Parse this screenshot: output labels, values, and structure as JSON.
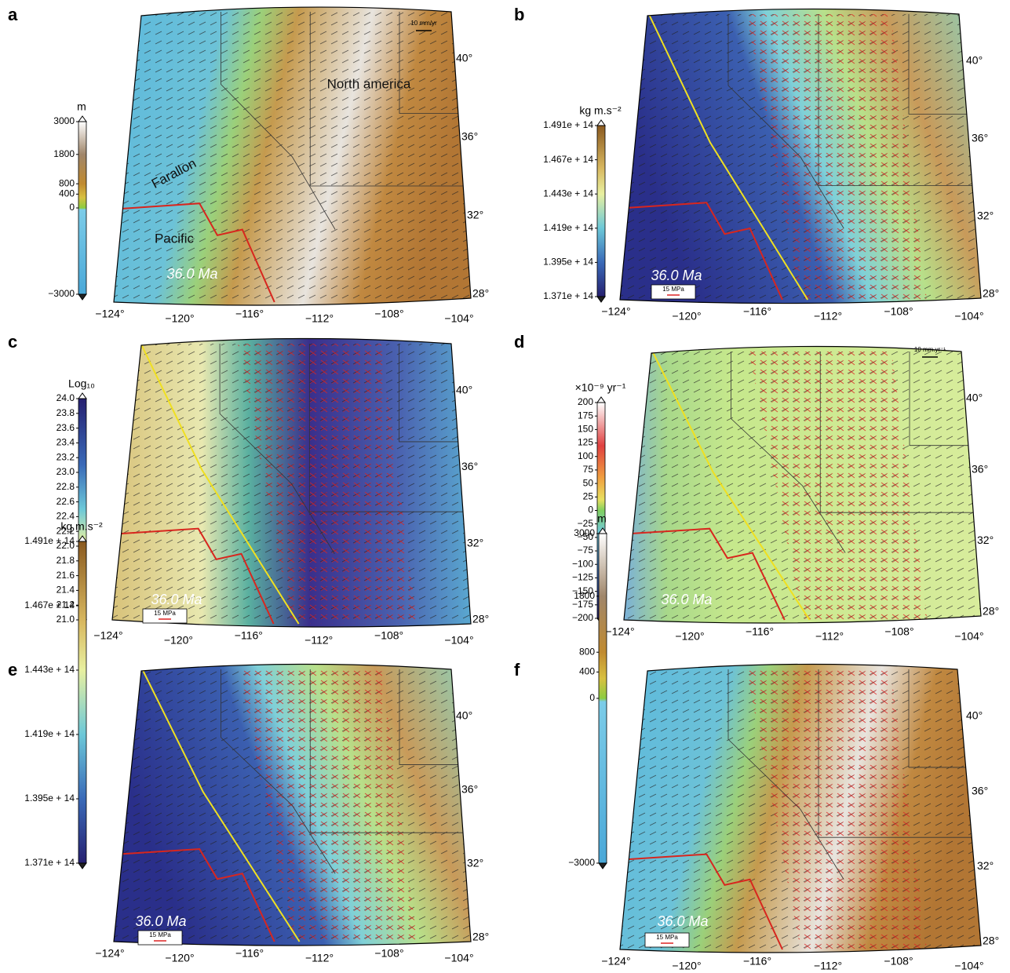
{
  "panels": [
    {
      "label": "a",
      "colorbar": {
        "unit": "m",
        "ticks": [
          "3000",
          "1800",
          "800",
          "400",
          "0",
          "−3000"
        ]
      },
      "lat_labels": [
        "40°",
        "36°",
        "32°",
        "28°"
      ],
      "lon_labels": [
        "−124°",
        "−120°",
        "−116°",
        "−112°",
        "−108°",
        "−104°"
      ],
      "age": "36.0 Ma",
      "scale": "10 mm/yr",
      "annotations": [
        "North america",
        "Farallon",
        "Pacific"
      ]
    },
    {
      "label": "b",
      "colorbar": {
        "unit": "kg m.s⁻²",
        "ticks": [
          "1.491e + 14",
          "1.467e + 14",
          "1.443e + 14",
          "1.419e + 14",
          "1.395e + 14",
          "1.371e + 14"
        ]
      },
      "lat_labels": [
        "40°",
        "36°",
        "32°",
        "28°"
      ],
      "lon_labels": [
        "−124°",
        "−120°",
        "−116°",
        "−112°",
        "−108°",
        "−104°"
      ],
      "age": "36.0 Ma",
      "scale": "15 MPa"
    },
    {
      "label": "c",
      "colorbar": {
        "unit": "Log₁₀",
        "ticks": [
          "24.0",
          "23.8",
          "23.6",
          "23.4",
          "23.2",
          "23.0",
          "22.8",
          "22.6",
          "22.4",
          "22.2",
          "22.0",
          "21.8",
          "21.6",
          "21.4",
          "21.2",
          "21.0"
        ]
      },
      "lat_labels": [
        "40°",
        "36°",
        "32°",
        "28°"
      ],
      "lon_labels": [
        "−124°",
        "−120°",
        "−116°",
        "−112°",
        "−108°",
        "−104°"
      ],
      "age": "36.0 Ma",
      "scale": "15 MPa"
    },
    {
      "label": "d",
      "colorbar": {
        "unit": "×10⁻⁹ yr⁻¹",
        "ticks": [
          "200",
          "175",
          "150",
          "125",
          "100",
          "75",
          "50",
          "25",
          "0",
          "−25",
          "−50",
          "−75",
          "−100",
          "−125",
          "−150",
          "−175",
          "−200"
        ]
      },
      "lat_labels": [
        "40°",
        "36°",
        "32°",
        "28°"
      ],
      "lon_labels": [
        "−124°",
        "−120°",
        "−116°",
        "−112°",
        "−108°",
        "−104°"
      ],
      "age": "36.0 Ma",
      "scale": "10 mm.yr⁻¹"
    },
    {
      "label": "e",
      "colorbar": {
        "unit": "kg m.s⁻²",
        "ticks": [
          "1.491e + 14",
          "1.467e + 14",
          "1.443e + 14",
          "1.419e + 14",
          "1.395e + 14",
          "1.371e + 14"
        ]
      },
      "lat_labels": [
        "40°",
        "36°",
        "32°",
        "28°"
      ],
      "lon_labels": [
        "−124°",
        "−120°",
        "−116°",
        "−112°",
        "−108°",
        "−104°"
      ],
      "age": "36.0 Ma",
      "scale": "15 MPa"
    },
    {
      "label": "f",
      "colorbar": {
        "unit": "m",
        "ticks": [
          "3000",
          "1800",
          "800",
          "400",
          "0",
          "−3000"
        ]
      },
      "lat_labels": [
        "40°",
        "36°",
        "32°",
        "28°"
      ],
      "lon_labels": [
        "−124°",
        "−120°",
        "−116°",
        "−112°",
        "−108°",
        "−104°"
      ],
      "age": "36.0 Ma",
      "scale": "15 MPa"
    }
  ]
}
